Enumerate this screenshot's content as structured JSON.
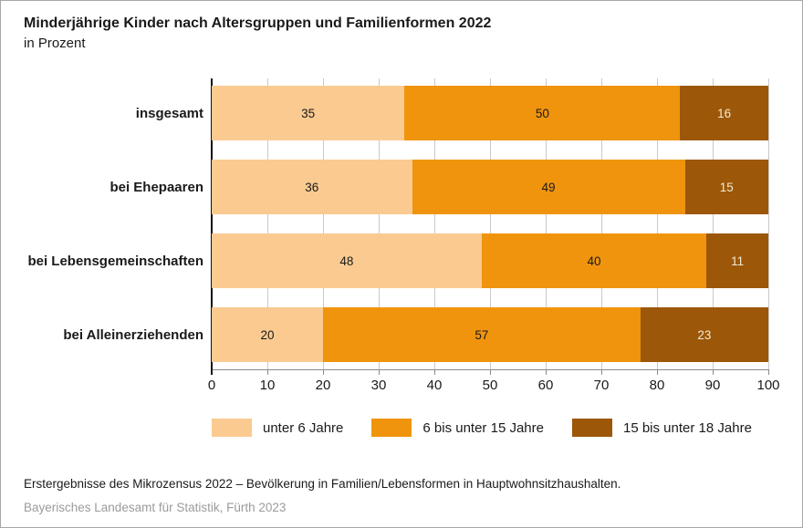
{
  "title": "Minderjährige Kinder nach Altersgruppen und Familienformen 2022",
  "subtitle": "in Prozent",
  "chart_data": {
    "type": "bar",
    "orientation": "horizontal",
    "stacked": true,
    "categories": [
      "insgesamt",
      "bei Ehepaaren",
      "bei Lebensgemeinschaften",
      "bei Alleinerziehenden"
    ],
    "series": [
      {
        "name": "unter 6 Jahre",
        "color": "#FACA90",
        "label_color": "#1a1a1a",
        "values": [
          35,
          36,
          48,
          20
        ]
      },
      {
        "name": "6 bis unter 15 Jahre",
        "color": "#F0940E",
        "label_color": "#1a1a1a",
        "values": [
          50,
          49,
          40,
          57
        ]
      },
      {
        "name": "15 bis unter 18 Jahre",
        "color": "#9C5708",
        "label_color": "#F2EBD4",
        "values": [
          16,
          15,
          11,
          23
        ]
      }
    ],
    "xlim": [
      0,
      100
    ],
    "xticks": [
      0,
      10,
      20,
      30,
      40,
      50,
      60,
      70,
      80,
      90,
      100
    ],
    "grid": true,
    "legend_position": "bottom",
    "xlabel": "",
    "ylabel": ""
  },
  "colors": {
    "gridline": "#c9c9c9",
    "axis_y": "#111111",
    "axis_x": "#8a8a8a",
    "page_border": "#a8a8a8",
    "background": "#ffffff"
  },
  "footer": {
    "source": "Erstergebnisse des Mikrozensus 2022 – Bevölkerung in Familien/Lebensformen in Hauptwohnsitzhaushalten.",
    "publisher": "Bayerisches Landesamt für Statistik, Fürth 2023"
  }
}
